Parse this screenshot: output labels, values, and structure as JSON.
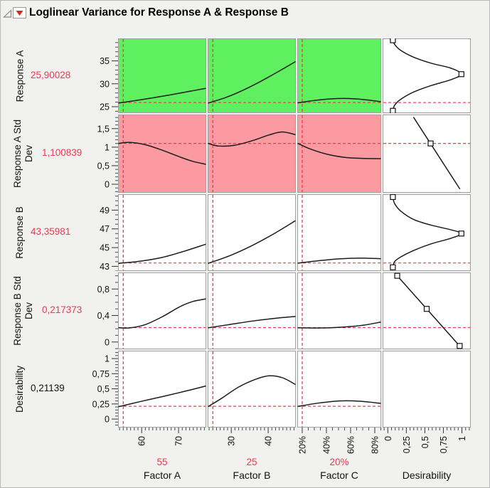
{
  "header": {
    "title": "Loglinear Variance for Response A & Response B",
    "disclosure_icon": "open-outline-triangle",
    "menu_icon": "red-triangle-menu"
  },
  "colors": {
    "background": "#f1f1f0",
    "cell_border": "#a0a0a0",
    "curve": "#1c1c1c",
    "red_accent": "#ee3a50",
    "red_triangle": "#d22a1e",
    "green_shade": "#5ff05f",
    "pink_shade": "#fb9aa0",
    "marker_fill": "#ffffff"
  },
  "chart_data": {
    "type": "line",
    "subtype": "prediction-profiler-matrix",
    "title": "Loglinear Variance for Response A & Response B",
    "grid": "profiler cells with red dashed crosshairs at current settings",
    "rows": [
      {
        "label": "Response A",
        "label_lines": [
          "Response A"
        ],
        "value": "25,90028",
        "value_color": "red",
        "current_value": 25.90028,
        "ylim": [
          23.6,
          39.9
        ],
        "yticks": [
          {
            "v": 25,
            "label": "25"
          },
          {
            "v": 30,
            "label": "30"
          },
          {
            "v": 35,
            "label": "35"
          }
        ],
        "minor_step": 1,
        "shade": "#5ff05f",
        "curves": [
          {
            "points": [
              [
                0,
                25.82
              ],
              [
                0.2,
                26.35
              ],
              [
                0.4,
                26.95
              ],
              [
                0.6,
                27.6
              ],
              [
                0.8,
                28.3
              ],
              [
                1,
                29.0
              ]
            ]
          },
          {
            "points": [
              [
                0,
                25.8
              ],
              [
                0.2,
                27.0
              ],
              [
                0.4,
                28.6
              ],
              [
                0.6,
                30.5
              ],
              [
                0.8,
                32.6
              ],
              [
                1,
                34.8
              ]
            ]
          },
          {
            "points": [
              [
                0,
                25.85
              ],
              [
                0.2,
                26.35
              ],
              [
                0.4,
                26.7
              ],
              [
                0.55,
                26.8
              ],
              [
                0.7,
                26.7
              ],
              [
                0.85,
                26.45
              ],
              [
                1,
                26.1
              ]
            ]
          },
          {
            "points": [
              [
                0.11,
                39.5
              ],
              [
                0.13,
                38.6
              ],
              [
                0.2,
                37.3
              ],
              [
                0.35,
                35.8
              ],
              [
                0.55,
                34.5
              ],
              [
                0.78,
                33.4
              ],
              [
                0.9,
                32.1
              ],
              [
                0.78,
                30.9
              ],
              [
                0.55,
                29.6
              ],
              [
                0.35,
                28.2
              ],
              [
                0.2,
                26.6
              ],
              [
                0.13,
                25.3
              ],
              [
                0.11,
                24.1
              ]
            ],
            "markers": [
              [
                0.11,
                39.5
              ],
              [
                0.9,
                32.1
              ],
              [
                0.11,
                24.1
              ]
            ]
          }
        ]
      },
      {
        "label": "Response A Std Dev",
        "label_lines": [
          "Response A Std",
          "Dev"
        ],
        "value": "1,100839",
        "value_color": "red",
        "current_value": 1.100839,
        "ylim": [
          -0.23,
          1.88
        ],
        "yticks": [
          {
            "v": 0,
            "label": "0"
          },
          {
            "v": 0.5,
            "label": "0,5"
          },
          {
            "v": 1,
            "label": "1"
          },
          {
            "v": 1.5,
            "label": "1,5"
          }
        ],
        "minor_step": 0.1,
        "shade": "#fb9aa0",
        "curves": [
          {
            "points": [
              [
                0,
                1.1
              ],
              [
                0.12,
                1.13
              ],
              [
                0.3,
                1.07
              ],
              [
                0.5,
                0.92
              ],
              [
                0.7,
                0.74
              ],
              [
                0.85,
                0.62
              ],
              [
                1,
                0.54
              ]
            ]
          },
          {
            "points": [
              [
                0,
                1.1
              ],
              [
                0.12,
                1.03
              ],
              [
                0.3,
                1.05
              ],
              [
                0.5,
                1.17
              ],
              [
                0.7,
                1.33
              ],
              [
                0.85,
                1.41
              ],
              [
                1,
                1.34
              ]
            ]
          },
          {
            "points": [
              [
                0,
                1.1
              ],
              [
                0.15,
                0.95
              ],
              [
                0.35,
                0.81
              ],
              [
                0.55,
                0.73
              ],
              [
                0.75,
                0.7
              ],
              [
                1,
                0.69
              ]
            ]
          },
          {
            "points": [
              [
                0.35,
                1.8
              ],
              [
                0.88,
                -0.12
              ]
            ],
            "markers": [
              [
                0.545,
                1.1
              ]
            ]
          }
        ]
      },
      {
        "label": "Response B",
        "label_lines": [
          "Response B"
        ],
        "value": "43,35981",
        "value_color": "red",
        "current_value": 43.35981,
        "ylim": [
          42.5,
          50.7
        ],
        "yticks": [
          {
            "v": 43,
            "label": "43"
          },
          {
            "v": 45,
            "label": "45"
          },
          {
            "v": 47,
            "label": "47"
          },
          {
            "v": 49,
            "label": "49"
          }
        ],
        "minor_step": 0.5,
        "shade": null,
        "curves": [
          {
            "points": [
              [
                0,
                43.32
              ],
              [
                0.25,
                43.55
              ],
              [
                0.5,
                43.95
              ],
              [
                0.75,
                44.6
              ],
              [
                1,
                45.35
              ]
            ]
          },
          {
            "points": [
              [
                0,
                43.33
              ],
              [
                0.25,
                44.15
              ],
              [
                0.5,
                45.2
              ],
              [
                0.75,
                46.45
              ],
              [
                1,
                47.85
              ]
            ]
          },
          {
            "points": [
              [
                0,
                43.34
              ],
              [
                0.25,
                43.6
              ],
              [
                0.5,
                43.8
              ],
              [
                0.75,
                43.88
              ],
              [
                1,
                43.82
              ]
            ]
          },
          {
            "points": [
              [
                0.11,
                50.4
              ],
              [
                0.13,
                49.7
              ],
              [
                0.2,
                48.9
              ],
              [
                0.35,
                48.0
              ],
              [
                0.55,
                47.4
              ],
              [
                0.78,
                46.9
              ],
              [
                0.9,
                46.5
              ],
              [
                0.78,
                46.0
              ],
              [
                0.55,
                45.4
              ],
              [
                0.35,
                44.7
              ],
              [
                0.2,
                44.0
              ],
              [
                0.13,
                43.5
              ],
              [
                0.11,
                42.9
              ]
            ],
            "markers": [
              [
                0.11,
                50.4
              ],
              [
                0.9,
                46.5
              ],
              [
                0.11,
                42.9
              ]
            ]
          }
        ]
      },
      {
        "label": "Response B Std Dev",
        "label_lines": [
          "Response B Std",
          "Dev"
        ],
        "value": "0,217373",
        "value_color": "red",
        "current_value": 0.217373,
        "ylim": [
          -0.11,
          1.05
        ],
        "yticks": [
          {
            "v": 0,
            "label": "0"
          },
          {
            "v": 0.4,
            "label": "0,4"
          },
          {
            "v": 0.8,
            "label": "0,8"
          }
        ],
        "minor_step": 0.1,
        "shade": null,
        "curves": [
          {
            "points": [
              [
                0,
                0.215
              ],
              [
                0.12,
                0.212
              ],
              [
                0.3,
                0.26
              ],
              [
                0.5,
                0.38
              ],
              [
                0.7,
                0.53
              ],
              [
                0.85,
                0.61
              ],
              [
                1,
                0.65
              ]
            ]
          },
          {
            "points": [
              [
                0,
                0.215
              ],
              [
                0.25,
                0.265
              ],
              [
                0.5,
                0.315
              ],
              [
                0.75,
                0.355
              ],
              [
                1,
                0.385
              ]
            ]
          },
          {
            "points": [
              [
                0,
                0.215
              ],
              [
                0.3,
                0.212
              ],
              [
                0.6,
                0.23
              ],
              [
                0.8,
                0.255
              ],
              [
                1,
                0.3
              ]
            ]
          },
          {
            "points": [
              [
                0.16,
                1.0
              ],
              [
                0.88,
                -0.06
              ]
            ],
            "markers": [
              [
                0.16,
                1.0
              ],
              [
                0.5,
                0.5
              ],
              [
                0.88,
                -0.06
              ]
            ]
          }
        ]
      },
      {
        "label": "Desirability",
        "label_lines": [
          "Desirability"
        ],
        "value": "0,21139",
        "value_color": "black",
        "current_value": 0.21139,
        "ylim": [
          -0.14,
          1.13
        ],
        "yticks": [
          {
            "v": 0,
            "label": "0"
          },
          {
            "v": 0.25,
            "label": "0,25"
          },
          {
            "v": 0.5,
            "label": "0,5"
          },
          {
            "v": 0.75,
            "label": "0,75"
          },
          {
            "v": 1,
            "label": "1"
          }
        ],
        "minor_step": 0.05,
        "shade": null,
        "curves": [
          {
            "points": [
              [
                0,
                0.205
              ],
              [
                0.25,
                0.29
              ],
              [
                0.5,
                0.37
              ],
              [
                0.75,
                0.455
              ],
              [
                1,
                0.545
              ]
            ]
          },
          {
            "points": [
              [
                0,
                0.21
              ],
              [
                0.15,
                0.34
              ],
              [
                0.35,
                0.53
              ],
              [
                0.55,
                0.66
              ],
              [
                0.7,
                0.715
              ],
              [
                0.85,
                0.685
              ],
              [
                1,
                0.575
              ]
            ]
          },
          {
            "points": [
              [
                0,
                0.21
              ],
              [
                0.25,
                0.265
              ],
              [
                0.5,
                0.3
              ],
              [
                0.75,
                0.295
              ],
              [
                1,
                0.26
              ]
            ]
          },
          null
        ]
      }
    ],
    "columns": [
      {
        "name": "Factor A",
        "current_label": "55",
        "current_value": 55,
        "xlim": [
          53.6,
          77.5
        ],
        "minor_step": 1,
        "xticks": [
          {
            "v": 60,
            "label": "60"
          },
          {
            "v": 70,
            "label": "70"
          }
        ]
      },
      {
        "name": "Factor B",
        "current_label": "25",
        "current_value": 25,
        "xlim": [
          23.6,
          47.5
        ],
        "minor_step": 1,
        "xticks": [
          {
            "v": 30,
            "label": "30"
          },
          {
            "v": 40,
            "label": "40"
          }
        ]
      },
      {
        "name": "Factor C",
        "current_label": "20%",
        "current_value": 0.2,
        "xlim": [
          0.159,
          0.853
        ],
        "minor_step": 0.05,
        "xticks": [
          {
            "v": 0.2,
            "label": "20%"
          },
          {
            "v": 0.4,
            "label": "40%"
          },
          {
            "v": 0.6,
            "label": "60%"
          },
          {
            "v": 0.8,
            "label": "80%"
          }
        ]
      },
      {
        "name": "Desirability",
        "current_label": null,
        "current_value": null,
        "xlim": [
          -0.07,
          1.12
        ],
        "minor_step": 0.05,
        "xticks": [
          {
            "v": 0,
            "label": "0"
          },
          {
            "v": 0.25,
            "label": "0,25"
          },
          {
            "v": 0.5,
            "label": "0,5"
          },
          {
            "v": 0.75,
            "label": "0,75"
          },
          {
            "v": 1,
            "label": "1"
          }
        ]
      }
    ]
  }
}
